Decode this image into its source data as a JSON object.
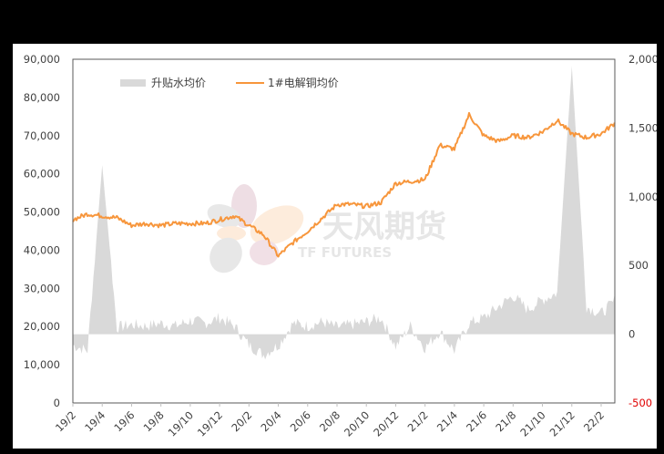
{
  "chart_data": {
    "type": "line+area",
    "title": "",
    "legend": [
      {
        "label": "升贴水均价",
        "type": "area",
        "color": "#d9d9d9",
        "axis": "right"
      },
      {
        "label": "1#电解铜均价",
        "type": "line",
        "color": "#f7963c",
        "axis": "left"
      }
    ],
    "legend_position": "top-left inside",
    "grid": false,
    "x_axis": {
      "tick_labels": [
        "19/2",
        "19/4",
        "19/6",
        "19/8",
        "19/10",
        "19/12",
        "20/2",
        "20/4",
        "20/6",
        "20/8",
        "20/10",
        "20/12",
        "21/2",
        "21/4",
        "21/6",
        "21/8",
        "21/10",
        "21/12",
        "22/2"
      ],
      "label": ""
    },
    "y_left": {
      "label": "",
      "range": [
        0,
        90000
      ],
      "tick_labels": [
        "0",
        "10,000",
        "20,000",
        "30,000",
        "40,000",
        "50,000",
        "60,000",
        "70,000",
        "80,000",
        "90,000"
      ]
    },
    "y_right": {
      "label": "",
      "range": [
        -500,
        2000
      ],
      "tick_labels": [
        "-500",
        "0",
        "500",
        "1,000",
        "1,500",
        "2,000"
      ],
      "negative_label_color": "#e00000"
    },
    "series": [
      {
        "name": "1#电解铜均价",
        "axis": "left",
        "x": [
          "19/2",
          "19/3",
          "19/4",
          "19/5",
          "19/6",
          "19/7",
          "19/8",
          "19/9",
          "19/10",
          "19/11",
          "19/12",
          "20/1",
          "20/2",
          "20/3",
          "20/4",
          "20/5",
          "20/6",
          "20/7",
          "20/8",
          "20/9",
          "20/10",
          "20/11",
          "20/12",
          "21/1",
          "21/2",
          "21/3",
          "21/4",
          "21/5",
          "21/6",
          "21/7",
          "21/8",
          "21/9",
          "21/10",
          "21/11",
          "21/12",
          "22/1",
          "22/2",
          "22/3"
        ],
        "values": [
          48000,
          49500,
          49000,
          48500,
          46500,
          47000,
          46500,
          47000,
          47000,
          47000,
          48000,
          49000,
          46500,
          44000,
          38500,
          42000,
          45000,
          48500,
          52000,
          52000,
          51500,
          52500,
          57500,
          58000,
          58500,
          67500,
          66500,
          75500,
          70000,
          68500,
          70000,
          69500,
          71000,
          74000,
          70500,
          69500,
          70500,
          73500
        ]
      },
      {
        "name": "升贴水均价",
        "axis": "right",
        "x": [
          "19/2",
          "19/3",
          "19/4",
          "19/5",
          "19/6",
          "19/7",
          "19/8",
          "19/9",
          "19/10",
          "19/11",
          "19/12",
          "20/1",
          "20/2",
          "20/3",
          "20/4",
          "20/5",
          "20/6",
          "20/7",
          "20/8",
          "20/9",
          "20/10",
          "20/11",
          "20/12",
          "21/1",
          "21/2",
          "21/3",
          "21/4",
          "21/5",
          "21/6",
          "21/7",
          "21/8",
          "21/9",
          "21/10",
          "21/11",
          "21/12",
          "22/1",
          "22/2",
          "22/3"
        ],
        "values": [
          -80,
          -120,
          1230,
          50,
          70,
          60,
          80,
          60,
          100,
          80,
          120,
          60,
          -80,
          -150,
          -80,
          80,
          60,
          90,
          50,
          70,
          90,
          120,
          -90,
          60,
          -100,
          20,
          -120,
          80,
          120,
          200,
          280,
          180,
          250,
          300,
          1950,
          200,
          150,
          250
        ]
      }
    ]
  },
  "watermark": {
    "cn": "天风期货",
    "en": "TF FUTURES"
  }
}
